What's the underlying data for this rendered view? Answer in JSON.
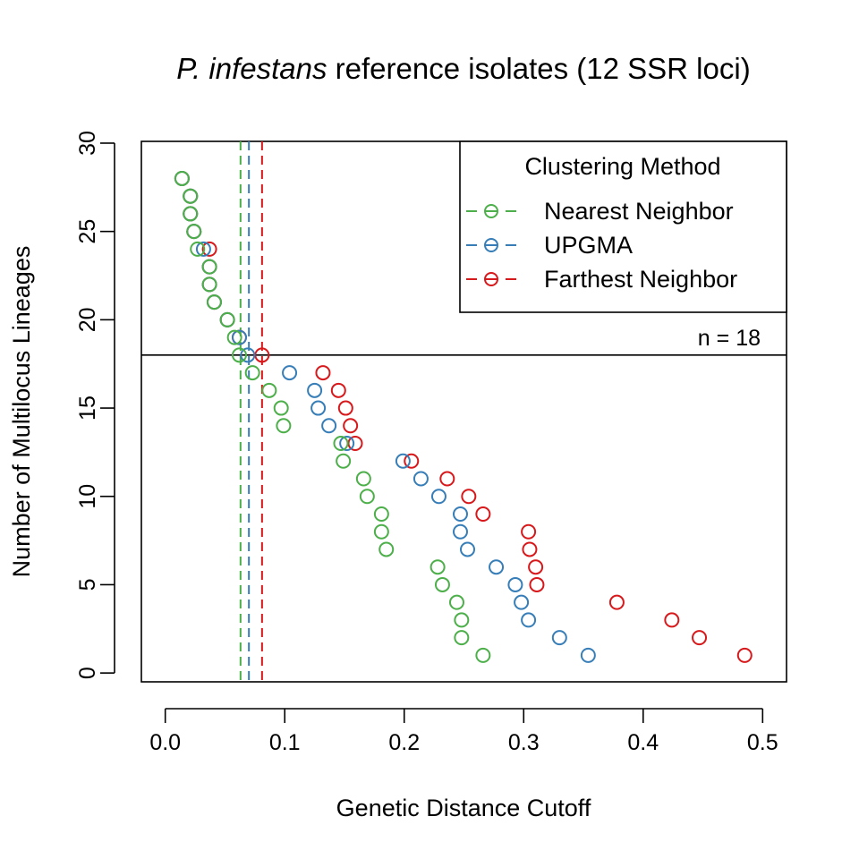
{
  "chart_data": {
    "type": "scatter",
    "title_italic": "P. infestans",
    "title_rest": " reference isolates (12 SSR loci)",
    "xlabel": "Genetic Distance Cutoff",
    "ylabel": "Number of Multilocus Lineages",
    "xlim": [
      -0.02,
      0.52
    ],
    "ylim": [
      -0.5,
      30.1
    ],
    "xticks": [
      0.0,
      0.1,
      0.2,
      0.3,
      0.4,
      0.5
    ],
    "xtick_labels": [
      "0.0",
      "0.1",
      "0.2",
      "0.3",
      "0.4",
      "0.5"
    ],
    "yticks": [
      0,
      5,
      10,
      15,
      20,
      25,
      30
    ],
    "ytick_labels": [
      "0",
      "5",
      "10",
      "15",
      "20",
      "25",
      "30"
    ],
    "grid": false,
    "legend": {
      "title": "Clustering Method",
      "placement": "top-right",
      "entries": [
        "Nearest Neighbor",
        "UPGMA",
        "Farthest Neighbor"
      ]
    },
    "hline": {
      "y": 18,
      "label": "n = 18"
    },
    "series": [
      {
        "name": "Nearest Neighbor",
        "color": "#4DAF4A",
        "cutoff": 0.063,
        "x": [
          0.014,
          0.021,
          0.021,
          0.024,
          0.027,
          0.037,
          0.037,
          0.041,
          0.052,
          0.058,
          0.062,
          0.073,
          0.087,
          0.097,
          0.099,
          0.147,
          0.149,
          0.166,
          0.169,
          0.181,
          0.181,
          0.185,
          0.228,
          0.232,
          0.244,
          0.248,
          0.248,
          0.266
        ],
        "y": [
          28,
          27,
          26,
          25,
          24,
          23,
          22,
          21,
          20,
          19,
          18,
          17,
          16,
          15,
          14,
          13,
          12,
          11,
          10,
          9,
          8,
          7,
          6,
          5,
          4,
          3,
          2,
          1
        ]
      },
      {
        "name": "UPGMA",
        "color": "#377EB8",
        "cutoff": 0.07,
        "x": [
          0.014,
          0.021,
          0.021,
          0.024,
          0.032,
          0.037,
          0.037,
          0.041,
          0.052,
          0.062,
          0.069,
          0.104,
          0.125,
          0.128,
          0.137,
          0.152,
          0.199,
          0.214,
          0.229,
          0.247,
          0.247,
          0.253,
          0.277,
          0.293,
          0.298,
          0.304,
          0.33,
          0.354
        ],
        "y": [
          28,
          27,
          26,
          25,
          24,
          23,
          22,
          21,
          20,
          19,
          18,
          17,
          16,
          15,
          14,
          13,
          12,
          11,
          10,
          9,
          8,
          7,
          6,
          5,
          4,
          3,
          2,
          1
        ]
      },
      {
        "name": "Farthest Neighbor",
        "color": "#D7191C",
        "cutoff": 0.081,
        "x": [
          0.014,
          0.021,
          0.021,
          0.024,
          0.037,
          0.037,
          0.037,
          0.041,
          0.052,
          0.062,
          0.081,
          0.132,
          0.145,
          0.151,
          0.155,
          0.159,
          0.206,
          0.236,
          0.254,
          0.266,
          0.304,
          0.305,
          0.31,
          0.311,
          0.378,
          0.424,
          0.447,
          0.485
        ],
        "y": [
          28,
          27,
          26,
          25,
          24,
          23,
          22,
          21,
          20,
          19,
          18,
          17,
          16,
          15,
          14,
          13,
          12,
          11,
          10,
          9,
          8,
          7,
          6,
          5,
          4,
          3,
          2,
          1
        ]
      }
    ]
  }
}
